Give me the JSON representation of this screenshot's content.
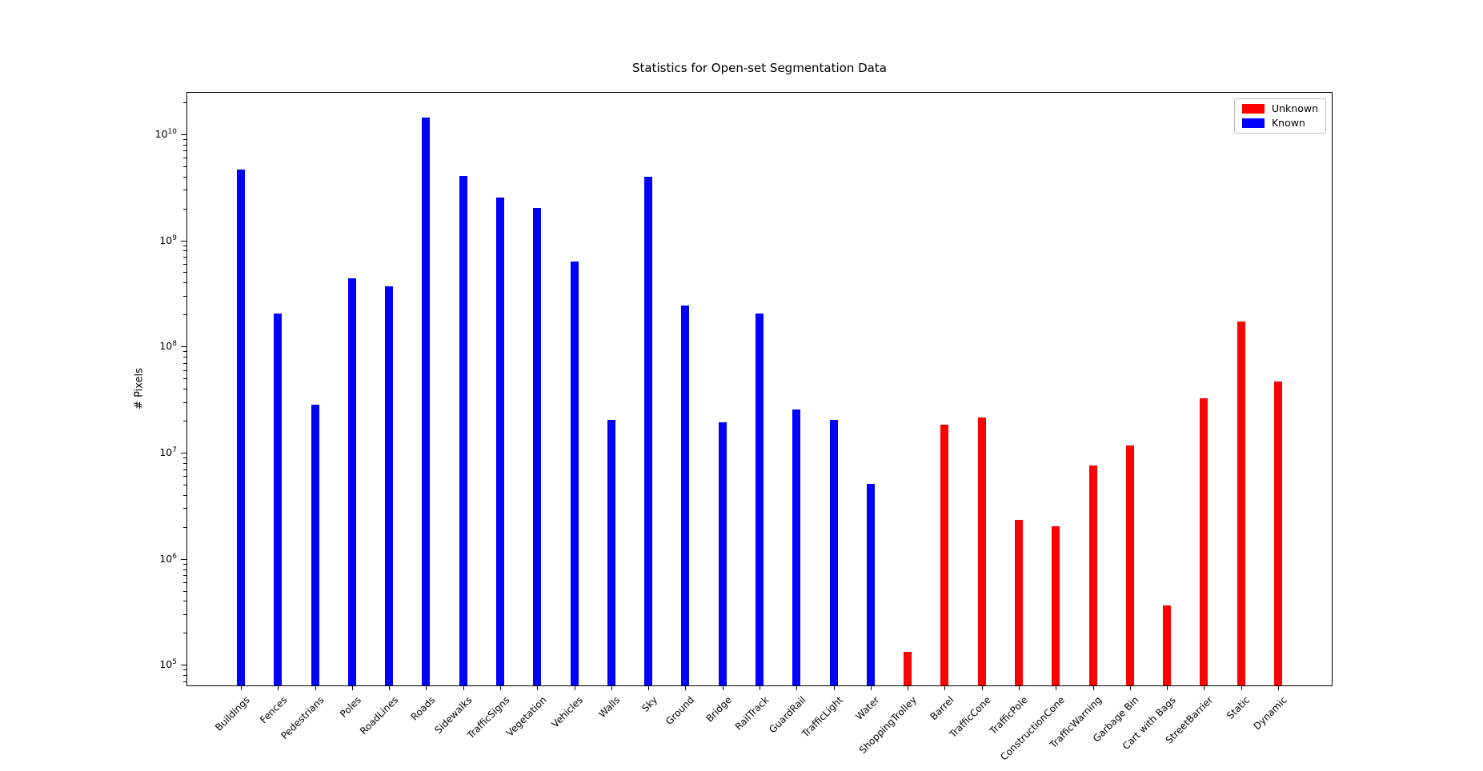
{
  "figure": {
    "background": "#ffffff"
  },
  "chart_data": {
    "type": "bar",
    "title": "Statistics for Open-set Segmentation Data",
    "xlabel": "",
    "ylabel": "# Pixels",
    "yscale": "log",
    "ylim": [
      63000,
      25000000000
    ],
    "grid": false,
    "legend_position": "upper right",
    "legend": [
      {
        "name": "Unknown",
        "color": "#ff0000"
      },
      {
        "name": "Known",
        "color": "#0000ff"
      }
    ],
    "ytick_exponents": [
      5,
      6,
      7,
      8,
      9,
      10
    ],
    "bars": [
      {
        "category": "Buildings",
        "series": "Known",
        "value": 4600000000.0
      },
      {
        "category": "Fences",
        "series": "Known",
        "value": 200000000.0
      },
      {
        "category": "Pedestrians",
        "series": "Known",
        "value": 28000000.0
      },
      {
        "category": "Poles",
        "series": "Known",
        "value": 430000000.0
      },
      {
        "category": "RoadLines",
        "series": "Known",
        "value": 360000000.0
      },
      {
        "category": "Roads",
        "series": "Known",
        "value": 14000000000.0
      },
      {
        "category": "Sidewalks",
        "series": "Known",
        "value": 4000000000.0
      },
      {
        "category": "TrafficSigns",
        "series": "Known",
        "value": 2500000000.0
      },
      {
        "category": "Vegetation",
        "series": "Known",
        "value": 2000000000.0
      },
      {
        "category": "Vehicles",
        "series": "Known",
        "value": 620000000.0
      },
      {
        "category": "Walls",
        "series": "Known",
        "value": 20000000.0
      },
      {
        "category": "Sky",
        "series": "Known",
        "value": 3900000000.0
      },
      {
        "category": "Ground",
        "series": "Known",
        "value": 240000000.0
      },
      {
        "category": "Bridge",
        "series": "Known",
        "value": 19000000.0
      },
      {
        "category": "RailTrack",
        "series": "Known",
        "value": 200000000.0
      },
      {
        "category": "GuardRail",
        "series": "Known",
        "value": 25000000.0
      },
      {
        "category": "TrafficLight",
        "series": "Known",
        "value": 20000000.0
      },
      {
        "category": "Water",
        "series": "Known",
        "value": 5000000.0
      },
      {
        "category": "ShoppingTrolley",
        "series": "Unknown",
        "value": 130000.0
      },
      {
        "category": "Barrel",
        "series": "Unknown",
        "value": 18000000.0
      },
      {
        "category": "TrafficCone",
        "series": "Unknown",
        "value": 21000000.0
      },
      {
        "category": "TrafficPole",
        "series": "Unknown",
        "value": 2300000.0
      },
      {
        "category": "ConstructionCone",
        "series": "Unknown",
        "value": 2000000.0
      },
      {
        "category": "TrafficWarning",
        "series": "Unknown",
        "value": 7500000.0
      },
      {
        "category": "Garbage Bin",
        "series": "Unknown",
        "value": 11500000.0
      },
      {
        "category": "Cart with Bags",
        "series": "Unknown",
        "value": 360000.0
      },
      {
        "category": "StreetBarrier",
        "series": "Unknown",
        "value": 32000000.0
      },
      {
        "category": "Static",
        "series": "Unknown",
        "value": 170000000.0
      },
      {
        "category": "Dynamic",
        "series": "Unknown",
        "value": 46000000.0
      }
    ]
  }
}
